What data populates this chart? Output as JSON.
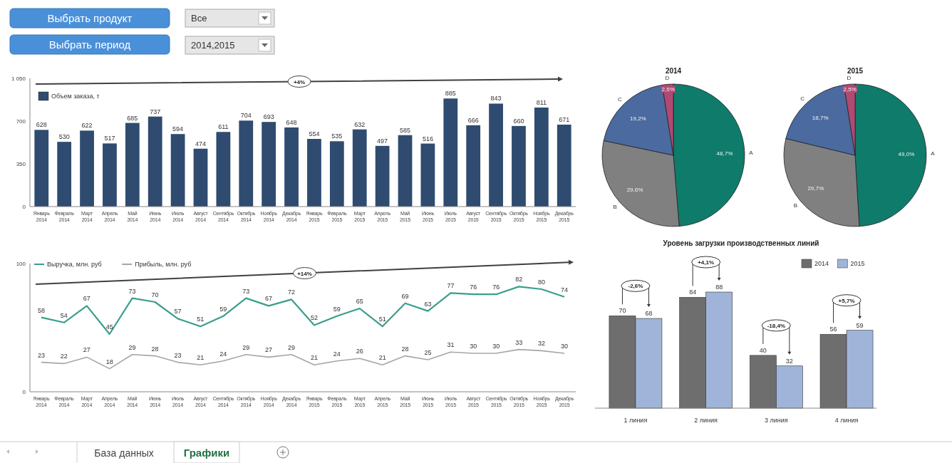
{
  "chart_data": [
    {
      "type": "other",
      "annotations": [
        "Выбрать продукт",
        "Выбрать период",
        "Все",
        "2014,2015",
        "База данных",
        "Графики"
      ]
    },
    {
      "type": "bar",
      "categories": [
        "Январь 2014",
        "Февраль 2014",
        "Март 2014",
        "Апрель 2014",
        "Май 2014",
        "Июнь 2014",
        "Июль 2014",
        "Август 2014",
        "Сентябрь 2014",
        "Октябрь 2014",
        "Ноябрь 2014",
        "Декабрь 2014",
        "Январь 2015",
        "Февраль 2015",
        "Март 2015",
        "Апрель 2015",
        "Май 2015",
        "Июнь 2015",
        "Июль 2015",
        "Август 2015",
        "Сентябрь 2015",
        "Октябрь 2015",
        "Ноябрь 2015",
        "Декабрь 2015"
      ],
      "series": [
        {
          "name": "Объем заказа, т",
          "color": "#2f4b70",
          "values": [
            628,
            530,
            622,
            517,
            685,
            737,
            594,
            474,
            611,
            704,
            693,
            648,
            554,
            535,
            632,
            497,
            585,
            516,
            885,
            666,
            843,
            660,
            811,
            671
          ]
        }
      ],
      "ylim": [
        0,
        1050
      ],
      "yticks": [
        0,
        350,
        700,
        {
          "value": 1050,
          "label": "1 050"
        }
      ],
      "data_labels": true,
      "legend": "top left",
      "annotations": [
        "+4%"
      ]
    },
    {
      "type": "line",
      "categories": [
        "Январь 2014",
        "Февраль 2014",
        "Март 2014",
        "Апрель 2014",
        "Май 2014",
        "Июнь 2014",
        "Июль 2014",
        "Август 2014",
        "Сентябрь 2014",
        "Октябрь 2014",
        "Ноябрь 2014",
        "Декабрь 2014",
        "Январь 2015",
        "Февраль 2015",
        "Март 2015",
        "Апрель 2015",
        "Май 2015",
        "Июнь 2015",
        "Июль 2015",
        "Август 2015",
        "Сентябрь 2015",
        "Октябрь 2015",
        "Ноябрь 2015",
        "Декабрь 2015"
      ],
      "series": [
        {
          "name": "Выручка, млн. руб",
          "color": "#3a9e8d",
          "values": [
            58,
            54,
            67,
            45,
            73,
            70,
            57,
            51,
            59,
            73,
            67,
            72,
            52,
            59,
            65,
            51,
            69,
            63,
            77,
            76,
            76,
            82,
            80,
            74
          ]
        },
        {
          "name": "Прибыль, млн. руб",
          "color": "#a6a6a6",
          "values": [
            23,
            22,
            27,
            18,
            29,
            28,
            23,
            21,
            24,
            29,
            27,
            29,
            21,
            24,
            26,
            21,
            28,
            25,
            31,
            30,
            30,
            33,
            32,
            30
          ]
        }
      ],
      "ylim": [
        0,
        100
      ],
      "yticks": [
        0,
        100
      ],
      "data_labels": true,
      "legend": "top left",
      "annotations": [
        "+14%"
      ]
    },
    {
      "type": "pie",
      "title": "2014",
      "categories": [
        "A",
        "B",
        "C",
        "D"
      ],
      "values": [
        48.7,
        29.6,
        19.2,
        2.5
      ],
      "value_labels": [
        "48,7%",
        "29,6%",
        "19,2%",
        "2,5%"
      ],
      "colors": [
        "#0f7b6a",
        "#808080",
        "#4a6aa0",
        "#b04a72"
      ]
    },
    {
      "type": "pie",
      "title": "2015",
      "categories": [
        "A",
        "B",
        "C",
        "D"
      ],
      "values": [
        49.0,
        29.7,
        18.7,
        2.5
      ],
      "value_labels": [
        "49,0%",
        "29,7%",
        "18,7%",
        "2,5%"
      ],
      "colors": [
        "#0f7b6a",
        "#808080",
        "#4a6aa0",
        "#b04a72"
      ]
    },
    {
      "type": "bar",
      "title": "Уровень загрузки производственных линий",
      "categories": [
        "1 линия",
        "2 линия",
        "3 линия",
        "4 линия"
      ],
      "series": [
        {
          "name": "2014",
          "color": "#6e6e6e",
          "values": [
            70,
            84,
            40,
            56
          ]
        },
        {
          "name": "2015",
          "color": "#9fb4d8",
          "values": [
            68,
            88,
            32,
            59
          ]
        }
      ],
      "data_labels": true,
      "legend": "top right",
      "annotations": [
        "-2,6%",
        "+4,1%",
        "-18,4%",
        "+5,7%"
      ]
    }
  ]
}
